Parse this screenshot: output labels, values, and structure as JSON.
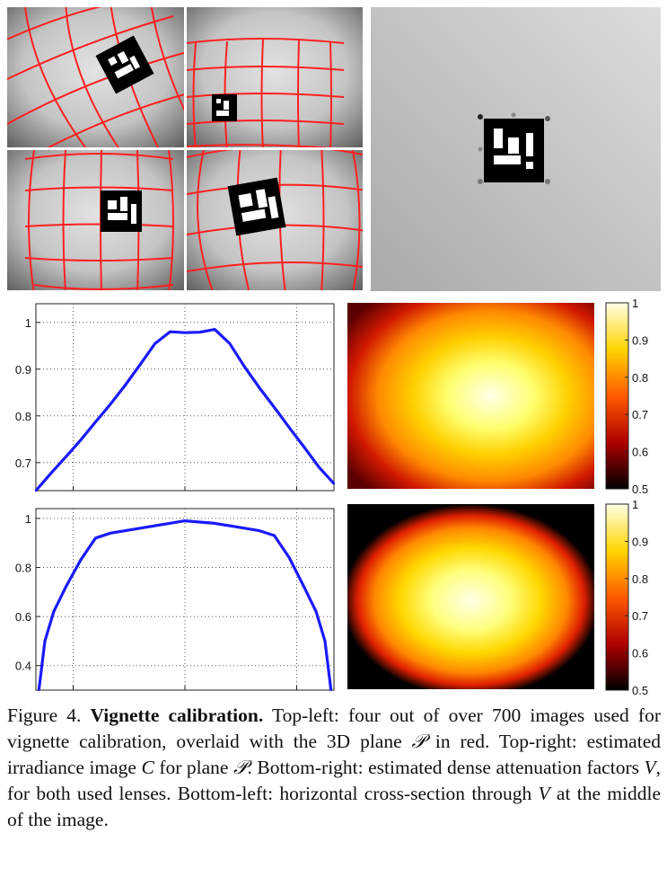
{
  "figure": {
    "label": "Figure 4.",
    "title": "Vignette calibration.",
    "caption_parts": [
      " Top-left: four out of over 700 images used for vignette calibration, overlaid with the 3D plane ",
      "𝒫",
      " in red. Top-right: estimated irradiance image ",
      "C",
      " for plane ",
      "𝒫",
      ". Bottom-right: estimated dense attenuation factors ",
      "V",
      ", for both used lenses. Bottom-left: horizontal cross-section through ",
      "V",
      " at the middle of the image."
    ]
  },
  "colors": {
    "curve": "#1a1aff",
    "grid_overlay": "#ff2020",
    "marker_bg": "#000000"
  },
  "chart_data": [
    {
      "type": "line",
      "title": "",
      "xlabel": "",
      "ylabel": "",
      "yticks": [
        0.7,
        0.8,
        0.9,
        1
      ],
      "ytick_labels": [
        "0.7",
        "0.8",
        "0.9",
        "1"
      ],
      "ylim": [
        0.64,
        1.04
      ],
      "xlim": [
        0,
        1
      ],
      "x": [
        0,
        0.05,
        0.1,
        0.15,
        0.2,
        0.25,
        0.3,
        0.35,
        0.4,
        0.45,
        0.5,
        0.55,
        0.6,
        0.65,
        0.7,
        0.75,
        0.8,
        0.85,
        0.9,
        0.95,
        1
      ],
      "values": [
        0.64,
        0.677,
        0.712,
        0.748,
        0.787,
        0.825,
        0.866,
        0.91,
        0.955,
        0.98,
        0.978,
        0.979,
        0.985,
        0.955,
        0.905,
        0.86,
        0.818,
        0.775,
        0.733,
        0.69,
        0.655
      ]
    },
    {
      "type": "heatmap",
      "colormap": "hot",
      "colorbar_ticks": [
        0.5,
        0.6,
        0.7,
        0.8,
        0.9,
        1
      ],
      "colorbar_labels": [
        "0.5",
        "0.6",
        "0.7",
        "0.8",
        "0.9",
        "1"
      ],
      "shape": "wide-elliptical falloff"
    },
    {
      "type": "line",
      "title": "",
      "xlabel": "",
      "ylabel": "",
      "yticks": [
        0.4,
        0.6,
        0.8,
        1
      ],
      "ytick_labels": [
        "0.4",
        "0.6",
        "0.8",
        "1"
      ],
      "ylim": [
        0.3,
        1.04
      ],
      "xlim": [
        0,
        1
      ],
      "x": [
        0.01,
        0.03,
        0.06,
        0.1,
        0.15,
        0.2,
        0.25,
        0.3,
        0.4,
        0.5,
        0.6,
        0.7,
        0.75,
        0.8,
        0.85,
        0.9,
        0.94,
        0.97,
        0.99
      ],
      "values": [
        0.3,
        0.5,
        0.62,
        0.72,
        0.83,
        0.92,
        0.94,
        0.95,
        0.97,
        0.99,
        0.98,
        0.96,
        0.95,
        0.93,
        0.84,
        0.72,
        0.62,
        0.5,
        0.3
      ]
    },
    {
      "type": "heatmap",
      "colormap": "hot",
      "colorbar_ticks": [
        0.5,
        0.6,
        0.7,
        0.8,
        0.9,
        1
      ],
      "colorbar_labels": [
        "0.5",
        "0.6",
        "0.7",
        "0.8",
        "0.9",
        "1"
      ],
      "shape": "circular falloff with dark corners"
    }
  ]
}
